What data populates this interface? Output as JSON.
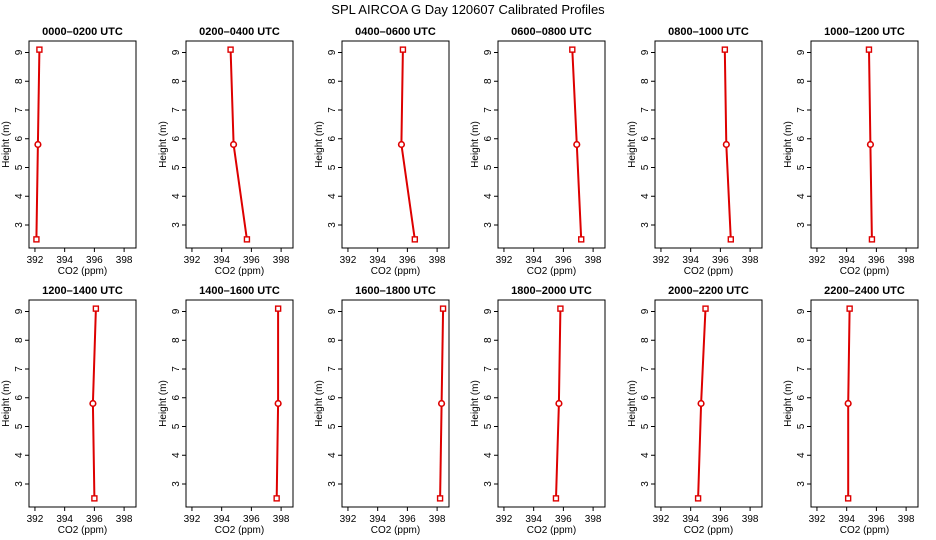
{
  "title": "SPL AIRCOA G  Day 120607  Calibrated Profiles",
  "chart_data": [
    {
      "type": "line",
      "title": "0000–0200 UTC",
      "xlabel": "CO2 (ppm)",
      "ylabel": "Height (m)",
      "xlim": [
        391.6,
        398.8
      ],
      "ylim": [
        2.2,
        9.4
      ],
      "xticks": [
        392,
        394,
        396,
        398
      ],
      "yticks": [
        3,
        4,
        5,
        6,
        7,
        8,
        9
      ],
      "series": [
        {
          "color": "#dd0000",
          "x": [
            392.1,
            392.2,
            392.3
          ],
          "y": [
            2.5,
            5.8,
            9.1
          ]
        }
      ]
    },
    {
      "type": "line",
      "title": "0200–0400 UTC",
      "xlabel": "CO2 (ppm)",
      "ylabel": "Height (m)",
      "xlim": [
        391.6,
        398.8
      ],
      "ylim": [
        2.2,
        9.4
      ],
      "xticks": [
        392,
        394,
        396,
        398
      ],
      "yticks": [
        3,
        4,
        5,
        6,
        7,
        8,
        9
      ],
      "series": [
        {
          "color": "#dd0000",
          "x": [
            395.7,
            394.8,
            394.6
          ],
          "y": [
            2.5,
            5.8,
            9.1
          ]
        }
      ]
    },
    {
      "type": "line",
      "title": "0400–0600 UTC",
      "xlabel": "CO2 (ppm)",
      "ylabel": "Height (m)",
      "xlim": [
        391.6,
        398.8
      ],
      "ylim": [
        2.2,
        9.4
      ],
      "xticks": [
        392,
        394,
        396,
        398
      ],
      "yticks": [
        3,
        4,
        5,
        6,
        7,
        8,
        9
      ],
      "series": [
        {
          "color": "#dd0000",
          "x": [
            396.5,
            395.6,
            395.7
          ],
          "y": [
            2.5,
            5.8,
            9.1
          ]
        }
      ]
    },
    {
      "type": "line",
      "title": "0600–0800 UTC",
      "xlabel": "CO2 (ppm)",
      "ylabel": "Height (m)",
      "xlim": [
        391.6,
        398.8
      ],
      "ylim": [
        2.2,
        9.4
      ],
      "xticks": [
        392,
        394,
        396,
        398
      ],
      "yticks": [
        3,
        4,
        5,
        6,
        7,
        8,
        9
      ],
      "series": [
        {
          "color": "#dd0000",
          "x": [
            397.2,
            396.9,
            396.6
          ],
          "y": [
            2.5,
            5.8,
            9.1
          ]
        }
      ]
    },
    {
      "type": "line",
      "title": "0800–1000 UTC",
      "xlabel": "CO2 (ppm)",
      "ylabel": "Height (m)",
      "xlim": [
        391.6,
        398.8
      ],
      "ylim": [
        2.2,
        9.4
      ],
      "xticks": [
        392,
        394,
        396,
        398
      ],
      "yticks": [
        3,
        4,
        5,
        6,
        7,
        8,
        9
      ],
      "series": [
        {
          "color": "#dd0000",
          "x": [
            396.7,
            396.4,
            396.3
          ],
          "y": [
            2.5,
            5.8,
            9.1
          ]
        }
      ]
    },
    {
      "type": "line",
      "title": "1000–1200 UTC",
      "xlabel": "CO2 (ppm)",
      "ylabel": "Height (m)",
      "xlim": [
        391.6,
        398.8
      ],
      "ylim": [
        2.2,
        9.4
      ],
      "xticks": [
        392,
        394,
        396,
        398
      ],
      "yticks": [
        3,
        4,
        5,
        6,
        7,
        8,
        9
      ],
      "series": [
        {
          "color": "#dd0000",
          "x": [
            395.7,
            395.6,
            395.5
          ],
          "y": [
            2.5,
            5.8,
            9.1
          ]
        }
      ]
    },
    {
      "type": "line",
      "title": "1200–1400 UTC",
      "xlabel": "CO2 (ppm)",
      "ylabel": "Height (m)",
      "xlim": [
        391.6,
        398.8
      ],
      "ylim": [
        2.2,
        9.4
      ],
      "xticks": [
        392,
        394,
        396,
        398
      ],
      "yticks": [
        3,
        4,
        5,
        6,
        7,
        8,
        9
      ],
      "series": [
        {
          "color": "#dd0000",
          "x": [
            396.0,
            395.9,
            396.1
          ],
          "y": [
            2.5,
            5.8,
            9.1
          ]
        }
      ]
    },
    {
      "type": "line",
      "title": "1400–1600 UTC",
      "xlabel": "CO2 (ppm)",
      "ylabel": "Height (m)",
      "xlim": [
        391.6,
        398.8
      ],
      "ylim": [
        2.2,
        9.4
      ],
      "xticks": [
        392,
        394,
        396,
        398
      ],
      "yticks": [
        3,
        4,
        5,
        6,
        7,
        8,
        9
      ],
      "series": [
        {
          "color": "#dd0000",
          "x": [
            397.7,
            397.8,
            397.8
          ],
          "y": [
            2.5,
            5.8,
            9.1
          ]
        }
      ]
    },
    {
      "type": "line",
      "title": "1600–1800 UTC",
      "xlabel": "CO2 (ppm)",
      "ylabel": "Height (m)",
      "xlim": [
        391.6,
        398.8
      ],
      "ylim": [
        2.2,
        9.4
      ],
      "xticks": [
        392,
        394,
        396,
        398
      ],
      "yticks": [
        3,
        4,
        5,
        6,
        7,
        8,
        9
      ],
      "series": [
        {
          "color": "#dd0000",
          "x": [
            398.2,
            398.3,
            398.4
          ],
          "y": [
            2.5,
            5.8,
            9.1
          ]
        }
      ]
    },
    {
      "type": "line",
      "title": "1800–2000 UTC",
      "xlabel": "CO2 (ppm)",
      "ylabel": "Height (m)",
      "xlim": [
        391.6,
        398.8
      ],
      "ylim": [
        2.2,
        9.4
      ],
      "xticks": [
        392,
        394,
        396,
        398
      ],
      "yticks": [
        3,
        4,
        5,
        6,
        7,
        8,
        9
      ],
      "series": [
        {
          "color": "#dd0000",
          "x": [
            395.5,
            395.7,
            395.8
          ],
          "y": [
            2.5,
            5.8,
            9.1
          ]
        }
      ]
    },
    {
      "type": "line",
      "title": "2000–2200 UTC",
      "xlabel": "CO2 (ppm)",
      "ylabel": "Height (m)",
      "xlim": [
        391.6,
        398.8
      ],
      "ylim": [
        2.2,
        9.4
      ],
      "xticks": [
        392,
        394,
        396,
        398
      ],
      "yticks": [
        3,
        4,
        5,
        6,
        7,
        8,
        9
      ],
      "series": [
        {
          "color": "#dd0000",
          "x": [
            394.5,
            394.7,
            395.0
          ],
          "y": [
            2.5,
            5.8,
            9.1
          ]
        }
      ]
    },
    {
      "type": "line",
      "title": "2200–2400 UTC",
      "xlabel": "CO2 (ppm)",
      "ylabel": "Height (m)",
      "xlim": [
        391.6,
        398.8
      ],
      "ylim": [
        2.2,
        9.4
      ],
      "xticks": [
        392,
        394,
        396,
        398
      ],
      "yticks": [
        3,
        4,
        5,
        6,
        7,
        8,
        9
      ],
      "series": [
        {
          "color": "#dd0000",
          "x": [
            394.1,
            394.1,
            394.2
          ],
          "y": [
            2.5,
            5.8,
            9.1
          ]
        }
      ]
    }
  ]
}
